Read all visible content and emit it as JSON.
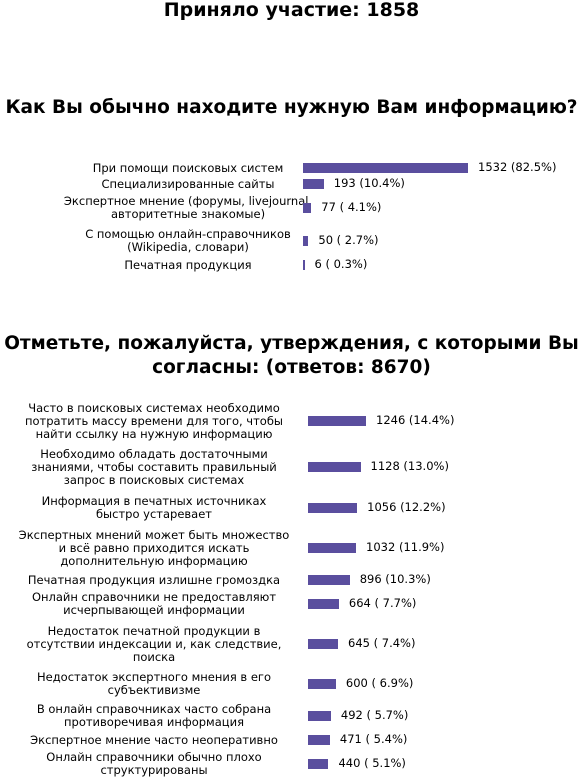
{
  "header": {
    "participants": "Приняло участие: 1858"
  },
  "chart_data": [
    {
      "type": "bar",
      "orientation": "horizontal",
      "title": "Как Вы обычно находите нужную Вам информацию?",
      "categories": [
        "При помощи поисковых систем",
        "Специализированные сайты",
        "Экспертное мнение (форумы, livejournal, авторитетные знакомые)",
        "С помощью онлайн-справочников (Wikipedia, словари)",
        "Печатная продукция"
      ],
      "category_lines": [
        [
          "При помощи поисковых систем"
        ],
        [
          "Специализированные сайты"
        ],
        [
          "Экспертное мнение (форумы, livejournal,",
          "авторитетные знакомые)"
        ],
        [
          "С помощью онлайн-справочников",
          "(Wikipedia, словари)"
        ],
        [
          "Печатная продукция"
        ]
      ],
      "values": [
        1532,
        193,
        77,
        50,
        6
      ],
      "value_labels": [
        "1532 (82.5%)",
        "193 (10.4%)",
        "77 ( 4.1%)",
        "50 ( 2.7%)",
        "6 ( 0.3%)"
      ],
      "bar_color": "#5a4e9e"
    },
    {
      "type": "bar",
      "orientation": "horizontal",
      "title": "Отметьте, пожалуйста, утверждения, с которыми Вы согласны: (ответов: 8670)",
      "categories": [
        "Часто в поисковых системах необходимо потратить массу времени для того, чтобы найти ссылку на нужную информацию",
        "Необходимо обладать достаточными знаниями, чтобы составить правильный запрос в поисковых системах",
        "Информация в печатных источниках быстро устаревает",
        "Экспертных мнений может быть множество и всё равно приходится искать дополнительную информацию",
        "Печатная продукция излишне громоздка",
        "Онлайн справочники не предоставляют исчерпывающей информации",
        "Недостаток печатной продукции в отсутствии индексации и, как следствие, поиска",
        "Недостаток экспертного мнения в его субъективизме",
        "В онлайн справочниках часто собрана противоречивая информация",
        "Экспертное мнение часто неоперативно",
        "Онлайн справочники обычно плохо структурированы"
      ],
      "category_lines": [
        [
          "Часто в поисковых системах необходимо",
          "потратить массу времени для того, чтобы",
          "найти ссылку на нужную информацию"
        ],
        [
          "Необходимо обладать достаточными",
          "знаниями, чтобы составить правильный",
          "запрос в поисковых системах"
        ],
        [
          "Информация в печатных источниках",
          "быстро устаревает"
        ],
        [
          "Экспертных мнений может быть множество",
          "и всё равно приходится искать",
          "дополнительную информацию"
        ],
        [
          "Печатная продукция излишне громоздка"
        ],
        [
          "Онлайн справочники не предоставляют",
          "исчерпывающей информации"
        ],
        [
          "Недостаток печатной продукции в",
          "отсутствии индексации и, как следствие,",
          "поиска"
        ],
        [
          "Недостаток экспертного мнения в его",
          "субъективизме"
        ],
        [
          "В онлайн справочниках часто собрана",
          "противоречивая информация"
        ],
        [
          "Экспертное мнение часто неоперативно"
        ],
        [
          "Онлайн справочники обычно плохо",
          "структурированы"
        ]
      ],
      "values": [
        1246,
        1128,
        1056,
        1032,
        896,
        664,
        645,
        600,
        492,
        471,
        440
      ],
      "value_labels": [
        "1246 (14.4%)",
        "1128 (13.0%)",
        "1056 (12.2%)",
        "1032 (11.9%)",
        "896 (10.3%)",
        "664 ( 7.7%)",
        "645 ( 7.4%)",
        "600 ( 6.9%)",
        "492 ( 5.7%)",
        "471 ( 5.4%)",
        "440 ( 5.1%)"
      ],
      "bar_color": "#5a4e9e"
    }
  ]
}
